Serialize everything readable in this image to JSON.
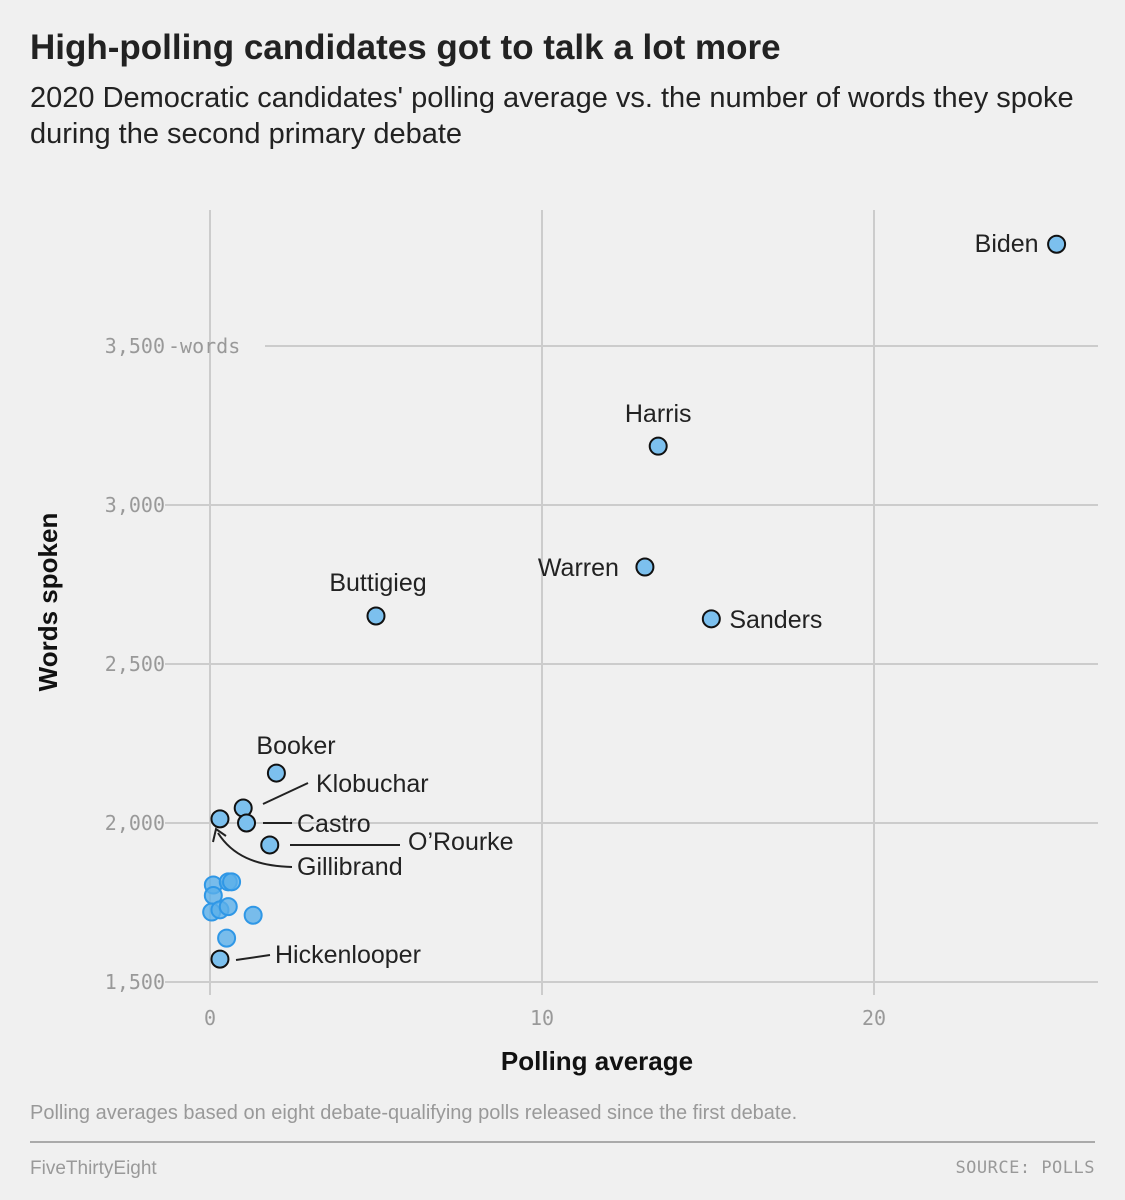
{
  "header": {
    "title": "High-polling candidates got to talk a lot more",
    "subtitle": "2020 Democratic candidates' polling average vs. the number of words they spoke during the second primary debate"
  },
  "footer": {
    "note": "Polling averages based on eight debate-qualifying polls released since the first debate.",
    "brand": "FiveThirtyEight",
    "source": "SOURCE: POLLS"
  },
  "chart_data": {
    "type": "scatter",
    "xlabel": "Polling average",
    "ylabel": "Words spoken",
    "xlim": [
      -0.5,
      27
    ],
    "ylim": [
      1410,
      3900
    ],
    "xticks": [
      {
        "value": 0,
        "label": "0"
      },
      {
        "value": 10,
        "label": "10"
      },
      {
        "value": 20,
        "label": "20"
      }
    ],
    "yticks": [
      {
        "value": 1500,
        "label": "1,500"
      },
      {
        "value": 2000,
        "label": "2,000"
      },
      {
        "value": 2500,
        "label": "2,500"
      },
      {
        "value": 3000,
        "label": "3,000"
      },
      {
        "value": 3500,
        "label": "3,500"
      }
    ],
    "ytick_unit": "words",
    "grid": true,
    "colors": {
      "labeled_fill": "#7cc0ee",
      "labeled_stroke": "#111111",
      "other_fill": "#5aafea",
      "other_stroke": "#2f97e6",
      "grid": "#cccccc"
    },
    "points": [
      {
        "name": "Biden",
        "x": 25.5,
        "y": 3820,
        "label": "Biden"
      },
      {
        "name": "Harris",
        "x": 13.5,
        "y": 3185,
        "label": "Harris"
      },
      {
        "name": "Warren",
        "x": 13.1,
        "y": 2805,
        "label": "Warren"
      },
      {
        "name": "Sanders",
        "x": 15.1,
        "y": 2642,
        "label": "Sanders"
      },
      {
        "name": "Buttigieg",
        "x": 5.0,
        "y": 2651,
        "label": "Buttigieg"
      },
      {
        "name": "Booker",
        "x": 2.0,
        "y": 2157,
        "label": "Booker"
      },
      {
        "name": "Klobuchar",
        "x": 1.0,
        "y": 2047,
        "label": "Klobuchar"
      },
      {
        "name": "Castro",
        "x": 1.1,
        "y": 2000,
        "label": "Castro"
      },
      {
        "name": "O'Rourke",
        "x": 1.8,
        "y": 1931,
        "label": "O’Rourke"
      },
      {
        "name": "Gillibrand",
        "x": 0.3,
        "y": 2013,
        "label": "Gillibrand"
      },
      {
        "name": "Hickenlooper",
        "x": 0.3,
        "y": 1572,
        "label": "Hickenlooper"
      },
      {
        "x": 0.1,
        "y": 1805
      },
      {
        "x": 0.55,
        "y": 1815
      },
      {
        "x": 0.65,
        "y": 1815
      },
      {
        "x": 0.1,
        "y": 1772
      },
      {
        "x": 0.05,
        "y": 1720
      },
      {
        "x": 0.3,
        "y": 1727
      },
      {
        "x": 0.55,
        "y": 1737
      },
      {
        "x": 1.3,
        "y": 1710
      },
      {
        "x": 0.5,
        "y": 1638
      }
    ]
  }
}
